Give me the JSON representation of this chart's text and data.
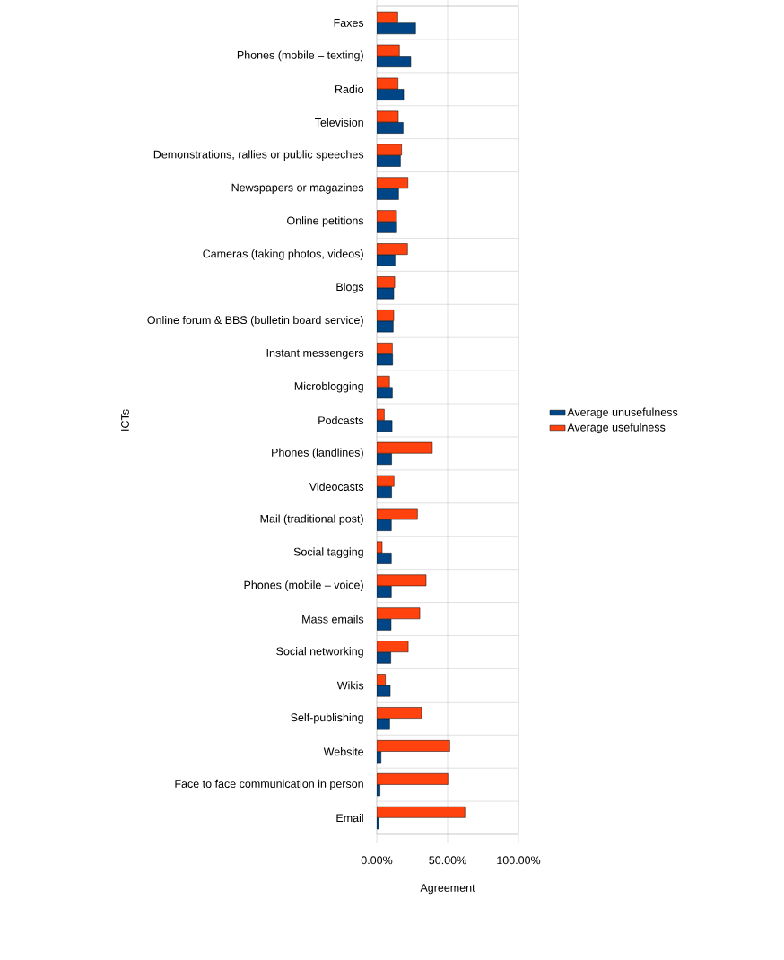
{
  "chart_data": {
    "type": "bar",
    "orientation": "horizontal",
    "xlabel": "Agreement",
    "ylabel": "ICTs",
    "categories": [
      "Faxes",
      "Phones (mobile – texting)",
      "Radio",
      "Television",
      "Demonstrations, rallies or public speeches",
      "Newspapers or magazines",
      "Online petitions",
      "Cameras (taking photos, videos)",
      "Blogs",
      "Online forum & BBS (bulletin board service)",
      "Instant messengers",
      "Microblogging",
      "Podcasts",
      "Phones (landlines)",
      "Videocasts",
      "Mail (traditional post)",
      "Social tagging",
      "Phones (mobile – voice)",
      "Mass emails",
      "Social networking",
      "Wikis",
      "Self-publishing",
      "Website",
      "Face to face communication in person",
      "Email"
    ],
    "series": [
      {
        "name": "Average unusefulness",
        "color": "#004586",
        "values": [
          27.4,
          24,
          19,
          18.6,
          16.7,
          15.4,
          14.1,
          12.9,
          12,
          11.6,
          11.2,
          11,
          10.8,
          10.5,
          10.5,
          10.3,
          10.3,
          10.3,
          10.1,
          9.9,
          9.5,
          9.1,
          3,
          2.3,
          1.5
        ]
      },
      {
        "name": "Average usefulness",
        "color": "#ff420e",
        "values": [
          14.8,
          16,
          15,
          15.2,
          17.5,
          22,
          14,
          21.7,
          12.7,
          12,
          11,
          9,
          5.3,
          39.2,
          12.2,
          28.7,
          3.8,
          34.8,
          30.4,
          22.2,
          6.1,
          31.6,
          51.5,
          50.2,
          62.2
        ]
      }
    ],
    "xlim": [
      0,
      100
    ],
    "xticks": [
      {
        "value": 0,
        "label": "0.00%"
      },
      {
        "value": 50,
        "label": "50.00%"
      },
      {
        "value": 100,
        "label": "100.00%"
      }
    ],
    "grid": true,
    "legend": "right"
  }
}
